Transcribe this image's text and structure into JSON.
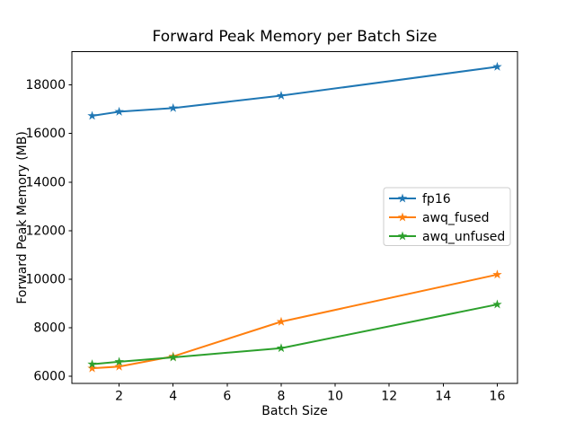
{
  "chart_data": {
    "type": "line",
    "title": "Forward Peak Memory per Batch Size",
    "xlabel": "Batch Size",
    "ylabel": "Forward Peak Memory (MB)",
    "x": [
      1,
      2,
      4,
      8,
      16
    ],
    "series": [
      {
        "name": "fp16",
        "color": "#1f77b4",
        "marker": "star",
        "values": [
          16730,
          16900,
          17050,
          17560,
          18750
        ]
      },
      {
        "name": "awq_fused",
        "color": "#ff7f0e",
        "marker": "star",
        "values": [
          6330,
          6400,
          6820,
          8250,
          10190
        ]
      },
      {
        "name": "awq_unfused",
        "color": "#2ca02c",
        "marker": "star",
        "values": [
          6500,
          6600,
          6780,
          7160,
          8960
        ]
      }
    ],
    "xticks": [
      2,
      4,
      6,
      8,
      10,
      12,
      14,
      16
    ],
    "yticks": [
      6000,
      8000,
      10000,
      12000,
      14000,
      16000,
      18000
    ],
    "xtick_labels": [
      "2",
      "4",
      "6",
      "8",
      "10",
      "12",
      "14",
      "16"
    ],
    "ytick_labels": [
      "6000",
      "8000",
      "10000",
      "12000",
      "14000",
      "16000",
      "18000"
    ],
    "xlim": [
      0.25,
      16.75
    ],
    "ylim": [
      5700,
      19370
    ],
    "grid": false,
    "background": "#ffffff",
    "axis_color": "#000000",
    "legend": {
      "position": "center-right",
      "background": "#ffffff",
      "border_color": "#cccccc",
      "entries": [
        "fp16",
        "awq_fused",
        "awq_unfused"
      ]
    }
  }
}
